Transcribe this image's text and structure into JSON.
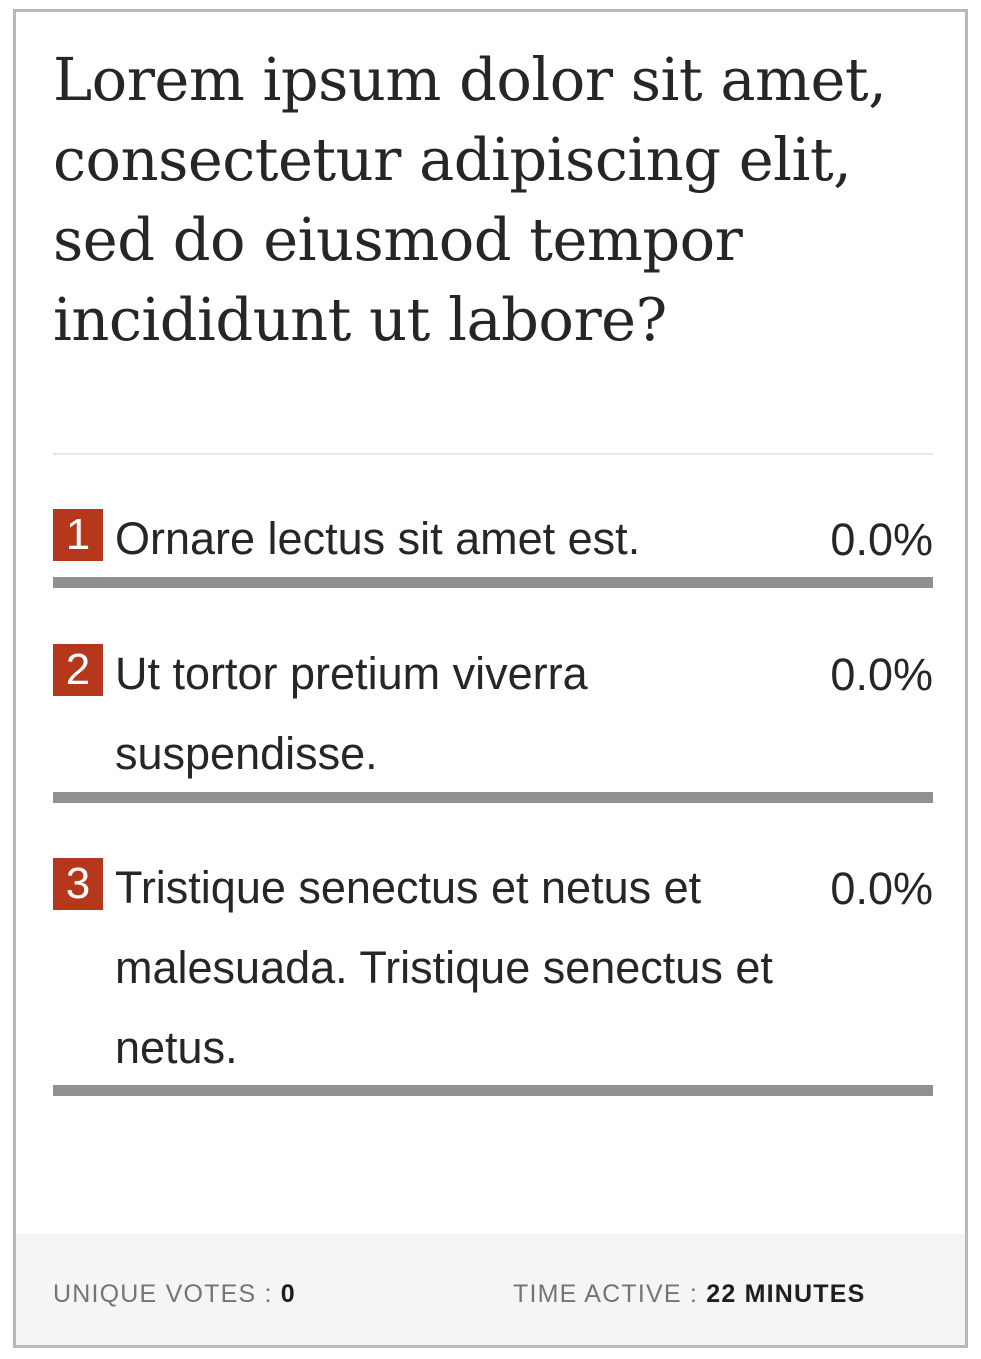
{
  "poll": {
    "question": "Lorem ipsum dolor sit amet, consectetur adipiscing elit, sed do eiusmod tempor incididunt ut labore?",
    "accent_color": "#b5381c",
    "options": [
      {
        "number": "1",
        "label": "Ornare lectus sit amet est.",
        "percent_label": "0.0%",
        "percent": 0.0
      },
      {
        "number": "2",
        "label": "Ut tortor pretium viverra suspendisse.",
        "percent_label": "0.0%",
        "percent": 0.0
      },
      {
        "number": "3",
        "label": "Tristique senectus et netus et malesuada. Tristique senectus et netus.",
        "percent_label": "0.0%",
        "percent": 0.0
      }
    ]
  },
  "footer": {
    "unique_votes_label": "UNIQUE VOTES :",
    "unique_votes_value": "0",
    "time_active_label": "TIME ACTIVE :",
    "time_active_value": "22 MINUTES"
  }
}
